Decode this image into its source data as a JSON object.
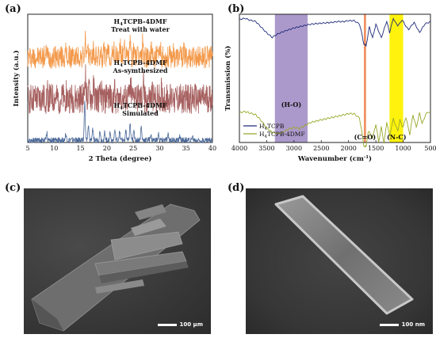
{
  "panels": {
    "a": {
      "label": "(a)",
      "chart_data": {
        "type": "line",
        "xlabel": "2 Theta (degree)",
        "ylabel": "Intensity (a.u.)",
        "xlim": [
          5,
          40
        ],
        "xticks": [
          5,
          10,
          15,
          20,
          25,
          30,
          35,
          40
        ],
        "series": [
          {
            "name": "H4TCPB-4DMF Treat with water",
            "formula": "H",
            "sub": "4",
            "rest": "TCPB-4DMF",
            "desc": "Treat with water",
            "color": "#f39a4c",
            "peaks": [
              [
                8.6,
                0.3
              ],
              [
                12.2,
                0.2
              ],
              [
                15.9,
                0.85
              ],
              [
                16.6,
                0.35
              ],
              [
                17.4,
                0.3
              ],
              [
                19.4,
                0.3
              ],
              [
                20.3,
                0.35
              ],
              [
                21.3,
                0.45
              ],
              [
                22.5,
                0.55
              ],
              [
                23.3,
                0.9
              ],
              [
                24.4,
                0.7
              ],
              [
                25.2,
                0.5
              ],
              [
                26.8,
                0.8
              ],
              [
                28.5,
                0.3
              ],
              [
                30.2,
                0.35
              ],
              [
                32.5,
                0.25
              ],
              [
                34.6,
                0.2
              ]
            ]
          },
          {
            "name": "H4TCPB-4DMF As-synthesized",
            "formula": "H",
            "sub": "4",
            "rest": "TCPB-4DMF",
            "desc": "As-symthesized",
            "color": "#a6605f",
            "peaks": [
              [
                8.7,
                0.25
              ],
              [
                12.3,
                0.15
              ],
              [
                15.9,
                1.0
              ],
              [
                16.7,
                0.45
              ],
              [
                17.5,
                0.4
              ],
              [
                18.9,
                0.3
              ],
              [
                20.1,
                0.3
              ],
              [
                21.4,
                0.4
              ],
              [
                22.6,
                0.45
              ],
              [
                24.5,
                0.65
              ],
              [
                25.3,
                0.35
              ],
              [
                26.9,
                0.7
              ],
              [
                28.6,
                0.25
              ],
              [
                30.3,
                0.3
              ],
              [
                32.6,
                0.2
              ]
            ]
          },
          {
            "name": "H4TCPB-4DMF Simulated",
            "formula": "H",
            "sub": "4",
            "rest": "TCPB-4DMF",
            "desc": "Simulated",
            "color": "#4d6a99",
            "peaks": [
              [
                8.6,
                0.2
              ],
              [
                12.2,
                0.15
              ],
              [
                15.8,
                1.0
              ],
              [
                16.5,
                0.35
              ],
              [
                17.3,
                0.3
              ],
              [
                18.7,
                0.25
              ],
              [
                19.6,
                0.2
              ],
              [
                20.6,
                0.2
              ],
              [
                21.5,
                0.25
              ],
              [
                22.4,
                0.2
              ],
              [
                23.6,
                0.25
              ],
              [
                24.4,
                0.4
              ],
              [
                25.1,
                0.3
              ],
              [
                26.5,
                0.35
              ],
              [
                28.3,
                0.15
              ],
              [
                29.8,
                0.15
              ],
              [
                31.6,
                0.12
              ],
              [
                33.8,
                0.1
              ],
              [
                36.2,
                0.1
              ]
            ]
          }
        ]
      }
    },
    "b": {
      "label": "(b)",
      "chart_data": {
        "type": "line",
        "xlabel": "Wavenumber (cm",
        "xlabel_sup": "-1",
        "xlabel_end": ")",
        "ylabel": "Transmission (%)",
        "xlim": [
          4000,
          500
        ],
        "xticks": [
          4000,
          3500,
          3000,
          2500,
          2000,
          1500,
          1000,
          500
        ],
        "bands": [
          {
            "label": "(H-O)",
            "from": 3350,
            "to": 2750,
            "color": "#a894c8"
          },
          {
            "label": "(C=O)",
            "from": 1720,
            "to": 1680,
            "color": "#f08a5a"
          },
          {
            "label": "(N-C)",
            "from": 1250,
            "to": 1000,
            "color": "#fff200"
          }
        ],
        "legend": "bottom-left",
        "series": [
          {
            "name": "H4TCPB",
            "formula": "H",
            "sub": "4",
            "rest": "TCPB",
            "color": "#1f2a7a",
            "points": [
              [
                4000,
                0.93
              ],
              [
                3900,
                0.95
              ],
              [
                3800,
                0.92
              ],
              [
                3700,
                0.9
              ],
              [
                3600,
                0.8
              ],
              [
                3500,
                0.7
              ],
              [
                3400,
                0.62
              ],
              [
                3300,
                0.68
              ],
              [
                3200,
                0.72
              ],
              [
                3100,
                0.75
              ],
              [
                3000,
                0.78
              ],
              [
                2900,
                0.8
              ],
              [
                2800,
                0.82
              ],
              [
                2700,
                0.84
              ],
              [
                2600,
                0.85
              ],
              [
                2500,
                0.86
              ],
              [
                2400,
                0.87
              ],
              [
                2300,
                0.88
              ],
              [
                2200,
                0.9
              ],
              [
                2100,
                0.9
              ],
              [
                2000,
                0.92
              ],
              [
                1900,
                0.92
              ],
              [
                1800,
                0.86
              ],
              [
                1720,
                0.5
              ],
              [
                1680,
                0.45
              ],
              [
                1620,
                0.8
              ],
              [
                1560,
                0.6
              ],
              [
                1500,
                0.85
              ],
              [
                1400,
                0.6
              ],
              [
                1300,
                0.9
              ],
              [
                1250,
                0.7
              ],
              [
                1180,
                0.95
              ],
              [
                1100,
                0.82
              ],
              [
                1020,
                0.92
              ],
              [
                900,
                0.75
              ],
              [
                800,
                0.88
              ],
              [
                700,
                0.7
              ],
              [
                600,
                0.86
              ],
              [
                500,
                0.9
              ]
            ]
          },
          {
            "name": "H4TCPB-4DMF",
            "formula": "H",
            "sub": "4",
            "rest": "TCPB-4DMF",
            "color": "#99a82a",
            "points": [
              [
                4000,
                0.5
              ],
              [
                3900,
                0.52
              ],
              [
                3800,
                0.5
              ],
              [
                3700,
                0.48
              ],
              [
                3600,
                0.4
              ],
              [
                3500,
                0.3
              ],
              [
                3400,
                0.24
              ],
              [
                3300,
                0.22
              ],
              [
                3200,
                0.24
              ],
              [
                3100,
                0.28
              ],
              [
                3000,
                0.3
              ],
              [
                2900,
                0.28
              ],
              [
                2800,
                0.32
              ],
              [
                2700,
                0.36
              ],
              [
                2600,
                0.38
              ],
              [
                2500,
                0.4
              ],
              [
                2400,
                0.42
              ],
              [
                2300,
                0.44
              ],
              [
                2200,
                0.46
              ],
              [
                2100,
                0.48
              ],
              [
                2000,
                0.5
              ],
              [
                1900,
                0.5
              ],
              [
                1800,
                0.44
              ],
              [
                1720,
                0.05
              ],
              [
                1680,
                0.02
              ],
              [
                1640,
                0.25
              ],
              [
                1560,
                0.15
              ],
              [
                1500,
                0.35
              ],
              [
                1450,
                0.1
              ],
              [
                1400,
                0.3
              ],
              [
                1350,
                0.08
              ],
              [
                1300,
                0.38
              ],
              [
                1250,
                0.18
              ],
              [
                1180,
                0.42
              ],
              [
                1100,
                0.25
              ],
              [
                1060,
                0.4
              ],
              [
                1000,
                0.3
              ],
              [
                950,
                0.45
              ],
              [
                880,
                0.2
              ],
              [
                820,
                0.48
              ],
              [
                760,
                0.3
              ],
              [
                700,
                0.5
              ],
              [
                650,
                0.35
              ],
              [
                580,
                0.5
              ],
              [
                500,
                0.52
              ]
            ]
          }
        ]
      }
    },
    "c": {
      "label": "(c)",
      "scale": "100 μm"
    },
    "d": {
      "label": "(d)",
      "scale": "100 nm"
    }
  }
}
